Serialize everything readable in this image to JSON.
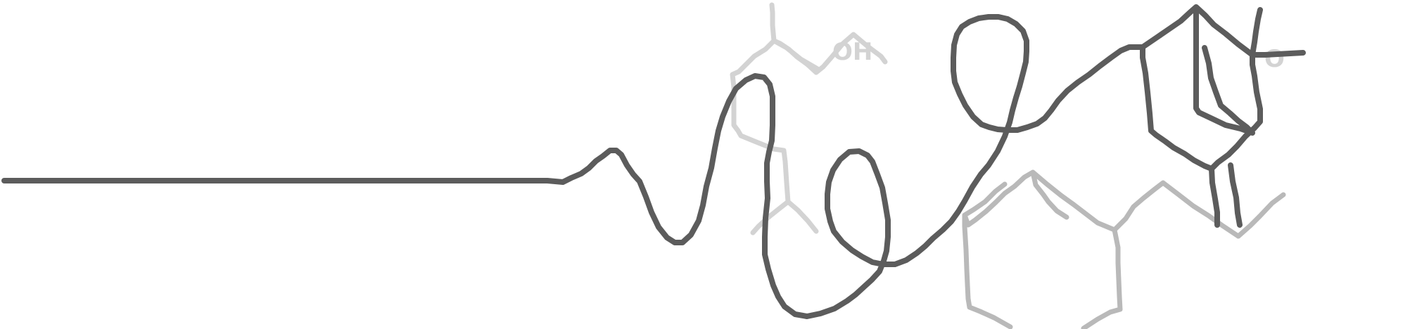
{
  "labels": {
    "oh": "OH",
    "o": "O"
  },
  "colors": {
    "main_stroke": "#5c5c5c",
    "faint_stroke": "#d3d3d3",
    "mid_stroke": "#b9b9b9",
    "background": "#ffffff"
  }
}
